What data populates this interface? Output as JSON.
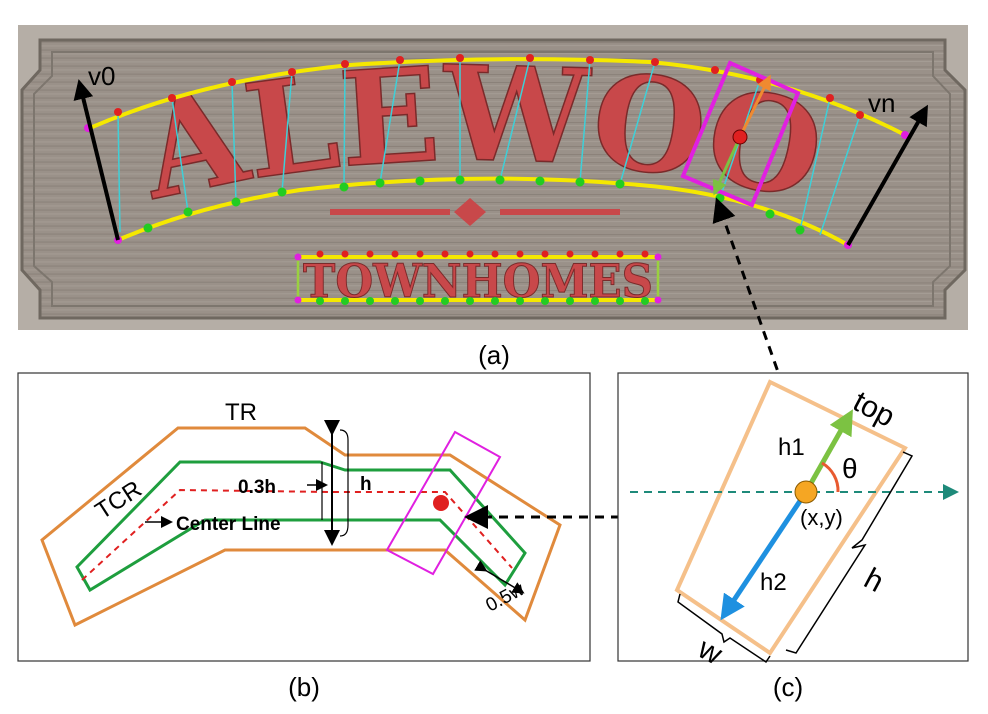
{
  "panels": {
    "a": {
      "caption": "(a)",
      "sign_word_main": "DALEWOOD",
      "sign_word_sub": "TOWNHOMES",
      "vector_start_label": "v0",
      "vector_end_label": "vn"
    },
    "b": {
      "caption": "(b)",
      "text_region_label": "TR",
      "text_center_region_label": "TCR",
      "center_line_label": "Center Line",
      "shrink_label": "0.3h",
      "height_label": "h",
      "width_shrink_label": "0.5w"
    },
    "c": {
      "caption": "(c)",
      "top_label": "top",
      "h1_label": "h1",
      "h2_label": "h2",
      "theta_label": "θ",
      "center_label": "(x,y)",
      "height_label": "h",
      "width_label": "w"
    }
  },
  "colors": {
    "text_region": "#E08A3C",
    "center_region": "#1E9E3E",
    "center_line": "#E02020",
    "box": "#E020E0",
    "h1_arrow": "#7CC242",
    "h2_arrow": "#1E90E0",
    "centre_dot": "#F5A623",
    "sign_bg": "#9a9088",
    "sign_letters": "#c8484a",
    "yellow_curve": "#F5E800"
  }
}
